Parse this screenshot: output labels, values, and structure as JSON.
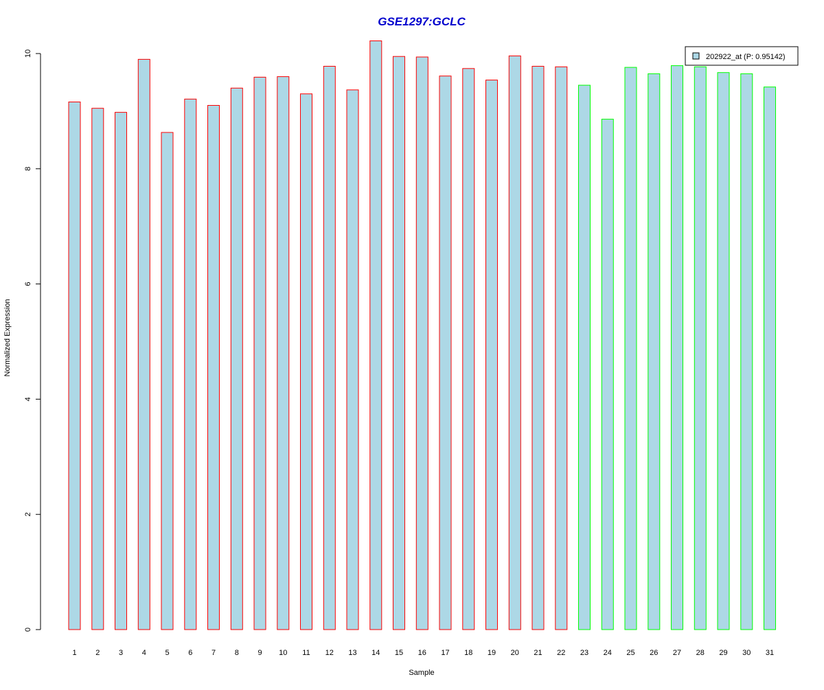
{
  "chart_data": {
    "type": "bar",
    "title": "GSE1297:GCLC",
    "xlabel": "Sample",
    "ylabel": "Normalized Expression",
    "ylim": [
      0,
      10.25
    ],
    "yticks": [
      0,
      2,
      4,
      6,
      8,
      10
    ],
    "grid": false,
    "legend_position": "top-right",
    "categories": [
      "1",
      "2",
      "3",
      "4",
      "5",
      "6",
      "7",
      "8",
      "9",
      "10",
      "11",
      "12",
      "13",
      "14",
      "15",
      "16",
      "17",
      "18",
      "19",
      "20",
      "21",
      "22",
      "23",
      "24",
      "25",
      "26",
      "27",
      "28",
      "29",
      "30",
      "31"
    ],
    "series": [
      {
        "name": "202922_at (P: 0.95142)",
        "values": [
          9.16,
          9.05,
          8.98,
          9.9,
          8.63,
          9.21,
          9.1,
          9.4,
          9.59,
          9.6,
          9.3,
          9.78,
          9.37,
          10.22,
          9.95,
          9.94,
          9.61,
          9.74,
          9.54,
          9.96,
          9.78,
          9.77,
          9.45,
          8.86,
          9.76,
          9.65,
          9.79,
          9.77,
          9.67,
          9.65,
          9.42
        ],
        "fill_color": "#ADD8E6",
        "border_colors": [
          "#FF0000",
          "#FF0000",
          "#FF0000",
          "#FF0000",
          "#FF0000",
          "#FF0000",
          "#FF0000",
          "#FF0000",
          "#FF0000",
          "#FF0000",
          "#FF0000",
          "#FF0000",
          "#FF0000",
          "#FF0000",
          "#FF0000",
          "#FF0000",
          "#FF0000",
          "#FF0000",
          "#FF0000",
          "#FF0000",
          "#FF0000",
          "#FF0000",
          "#00FF00",
          "#00FF00",
          "#00FF00",
          "#00FF00",
          "#00FF00",
          "#00FF00",
          "#00FF00",
          "#00FF00",
          "#00FF00"
        ]
      }
    ]
  },
  "colors": {
    "title": "#0000CD",
    "axis": "#000000",
    "legend_border": "#000000"
  }
}
